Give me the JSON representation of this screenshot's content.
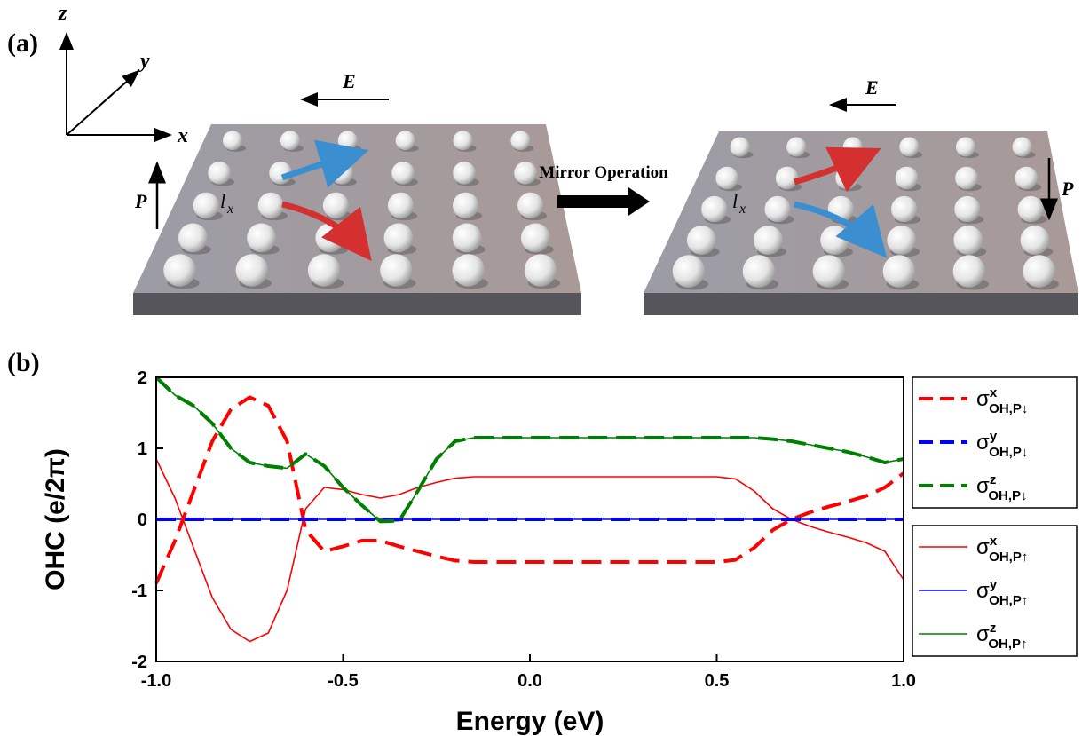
{
  "panel_a": {
    "label": "(a)",
    "axes": [
      "z",
      "y",
      "x"
    ],
    "field": "E",
    "polarization": "P",
    "orbital": "l",
    "orbital_index": "x",
    "operation": "Mirror Operation"
  },
  "chart_data": {
    "type": "line",
    "label": "(b)",
    "x_label": "Energy (eV)",
    "y_label": "OHC (e/2π)",
    "x": [
      -1.0,
      -0.95,
      -0.9,
      -0.85,
      -0.8,
      -0.75,
      -0.7,
      -0.65,
      -0.6,
      -0.55,
      -0.5,
      -0.45,
      -0.4,
      -0.35,
      -0.3,
      -0.25,
      -0.2,
      -0.15,
      -0.1,
      -0.05,
      0.0,
      0.05,
      0.1,
      0.15,
      0.2,
      0.25,
      0.3,
      0.35,
      0.4,
      0.45,
      0.5,
      0.55,
      0.6,
      0.65,
      0.7,
      0.75,
      0.8,
      0.85,
      0.9,
      0.95,
      1.0
    ],
    "xlim": [
      -1,
      1
    ],
    "ylim": [
      -2,
      2
    ],
    "xticks": [
      {
        "value": -1,
        "label": "-1.0"
      },
      -0.5,
      {
        "value": 0,
        "label": "0.0"
      },
      0.5,
      {
        "value": 1,
        "label": "1.0"
      }
    ],
    "yticks": [
      -2,
      -1,
      0,
      1,
      2
    ],
    "series": [
      {
        "name": "σxOH,P↓",
        "color": "#ff0000",
        "style": "dashed",
        "values": [
          -0.9,
          -0.3,
          0.4,
          1.1,
          1.55,
          1.72,
          1.6,
          1.1,
          -0.15,
          -0.45,
          -0.38,
          -0.3,
          -0.3,
          -0.38,
          -0.45,
          -0.52,
          -0.58,
          -0.6,
          -0.6,
          -0.6,
          -0.6,
          -0.6,
          -0.6,
          -0.6,
          -0.6,
          -0.6,
          -0.6,
          -0.6,
          -0.6,
          -0.6,
          -0.6,
          -0.57,
          -0.4,
          -0.15,
          0.0,
          0.1,
          0.18,
          0.25,
          0.33,
          0.45,
          0.65
        ]
      },
      {
        "name": "σyOH,P↓",
        "color": "#0000ff",
        "style": "dashed",
        "values": [
          0,
          0,
          0,
          0,
          0,
          0,
          0,
          0,
          0,
          0,
          0,
          0,
          0,
          0,
          0,
          0,
          0,
          0,
          0,
          0,
          0,
          0,
          0,
          0,
          0,
          0,
          0,
          0,
          0,
          0,
          0,
          0,
          0,
          0,
          0,
          0,
          0,
          0,
          0,
          0,
          0
        ]
      },
      {
        "name": "σzOH,P↓",
        "color": "#008000",
        "style": "dashed",
        "values": [
          2.0,
          1.75,
          1.6,
          1.35,
          1.0,
          0.8,
          0.75,
          0.72,
          0.92,
          0.75,
          0.45,
          0.2,
          -0.03,
          -0.02,
          0.4,
          0.85,
          1.1,
          1.15,
          1.15,
          1.15,
          1.15,
          1.15,
          1.15,
          1.15,
          1.15,
          1.15,
          1.15,
          1.15,
          1.15,
          1.15,
          1.15,
          1.15,
          1.15,
          1.13,
          1.1,
          1.05,
          1.0,
          0.95,
          0.88,
          0.8,
          0.85
        ]
      },
      {
        "name": "σxOH,P↑",
        "color": "#ff0000",
        "style": "solid",
        "values": [
          0.85,
          0.3,
          -0.4,
          -1.1,
          -1.55,
          -1.72,
          -1.6,
          -1.0,
          0.15,
          0.45,
          0.42,
          0.35,
          0.3,
          0.35,
          0.45,
          0.52,
          0.58,
          0.6,
          0.6,
          0.6,
          0.6,
          0.6,
          0.6,
          0.6,
          0.6,
          0.6,
          0.6,
          0.6,
          0.6,
          0.6,
          0.6,
          0.57,
          0.4,
          0.15,
          0.0,
          -0.1,
          -0.18,
          -0.25,
          -0.33,
          -0.45,
          -0.85
        ]
      },
      {
        "name": "σyOH,P↑",
        "color": "#0000ff",
        "style": "solid",
        "values": [
          0,
          0,
          0,
          0,
          0,
          0,
          0,
          0,
          0,
          0,
          0,
          0,
          0,
          0,
          0,
          0,
          0,
          0,
          0,
          0,
          0,
          0,
          0,
          0,
          0,
          0,
          0,
          0,
          0,
          0,
          0,
          0,
          0,
          0,
          0,
          0,
          0,
          0,
          0,
          0,
          0
        ]
      },
      {
        "name": "σzOH,P↑",
        "color": "#008000",
        "style": "solid",
        "values": [
          2.0,
          1.75,
          1.6,
          1.35,
          1.0,
          0.8,
          0.75,
          0.72,
          0.92,
          0.75,
          0.45,
          0.2,
          -0.03,
          -0.02,
          0.4,
          0.85,
          1.1,
          1.15,
          1.15,
          1.15,
          1.15,
          1.15,
          1.15,
          1.15,
          1.15,
          1.15,
          1.15,
          1.15,
          1.15,
          1.15,
          1.15,
          1.15,
          1.15,
          1.13,
          1.1,
          1.05,
          1.0,
          0.95,
          0.88,
          0.8,
          0.85
        ]
      }
    ]
  }
}
